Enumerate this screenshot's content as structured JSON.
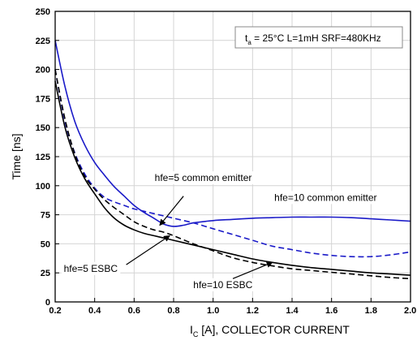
{
  "chart_data": {
    "type": "line",
    "title": "",
    "xlabel": {
      "main": "I",
      "sub": "C",
      "rest": " [A], COLLECTOR CURRENT"
    },
    "ylabel": "Time [ns]",
    "xlim": [
      0.2,
      2.0
    ],
    "ylim": [
      0,
      250
    ],
    "x_ticks": [
      0.2,
      0.4,
      0.6,
      0.8,
      1.0,
      1.2,
      1.4,
      1.6,
      1.8,
      2.0
    ],
    "x_tick_labels": [
      "0.2",
      "0.4",
      "0.6",
      "0.8",
      "1.0",
      "1.2",
      "1.4",
      "1.6",
      "1.8",
      "2.0"
    ],
    "y_ticks": [
      0,
      25,
      50,
      75,
      100,
      125,
      150,
      175,
      200,
      225,
      250
    ],
    "y_tick_labels": [
      "0",
      "25",
      "50",
      "75",
      "100",
      "125",
      "150",
      "175",
      "200",
      "225",
      "250"
    ],
    "grid": true,
    "condition_box": {
      "t": "t",
      "sub": "a",
      "rest": " = 25°C L=1mH SRF=480KHz"
    },
    "series": [
      {
        "key": "blue_solid",
        "color": "#1a1ac8",
        "dash": "solid",
        "x": [
          0.2,
          0.25,
          0.3,
          0.35,
          0.4,
          0.45,
          0.5,
          0.55,
          0.6,
          0.65,
          0.7,
          0.75,
          0.8,
          0.85,
          0.9,
          1.0,
          1.1,
          1.2,
          1.3,
          1.4,
          1.5,
          1.6,
          1.7,
          1.8,
          1.9,
          2.0
        ],
        "y": [
          225,
          185,
          155,
          135,
          120,
          109,
          99,
          91,
          83,
          77,
          72,
          67,
          65,
          66,
          68,
          70,
          71,
          72,
          72.5,
          73,
          73,
          73,
          72.5,
          71.5,
          70.5,
          69.5
        ]
      },
      {
        "key": "blue_dashed",
        "color": "#1a1ac8",
        "dash": "dashed",
        "x": [
          0.2,
          0.25,
          0.3,
          0.35,
          0.4,
          0.45,
          0.5,
          0.55,
          0.6,
          0.65,
          0.7,
          0.75,
          0.8,
          0.9,
          1.0,
          1.1,
          1.2,
          1.3,
          1.4,
          1.5,
          1.6,
          1.7,
          1.8,
          1.9,
          2.0
        ],
        "y": [
          200,
          155,
          128,
          110,
          98,
          90,
          86,
          83,
          80,
          78,
          76,
          74,
          72,
          68,
          63,
          58,
          53,
          48,
          45,
          42,
          40,
          39,
          39,
          40.5,
          43
        ]
      },
      {
        "key": "black_solid",
        "color": "#000000",
        "dash": "solid",
        "x": [
          0.2,
          0.25,
          0.3,
          0.35,
          0.4,
          0.45,
          0.5,
          0.55,
          0.6,
          0.65,
          0.7,
          0.75,
          0.8,
          0.9,
          1.0,
          1.1,
          1.2,
          1.3,
          1.4,
          1.5,
          1.6,
          1.7,
          1.8,
          1.9,
          2.0
        ],
        "y": [
          190,
          150,
          124,
          106,
          93,
          81,
          72,
          66,
          62,
          59,
          57,
          55,
          53,
          49,
          45,
          41,
          37,
          34,
          31.5,
          29.5,
          28,
          26.5,
          25,
          24,
          23
        ]
      },
      {
        "key": "black_dashed",
        "color": "#000000",
        "dash": "dashed",
        "x": [
          0.2,
          0.25,
          0.3,
          0.35,
          0.4,
          0.45,
          0.5,
          0.55,
          0.6,
          0.65,
          0.7,
          0.75,
          0.8,
          0.9,
          1.0,
          1.1,
          1.2,
          1.3,
          1.4,
          1.5,
          1.6,
          1.7,
          1.8,
          1.9,
          2.0
        ],
        "y": [
          200,
          157,
          127,
          108,
          97,
          88,
          81,
          75,
          69,
          65,
          62,
          60,
          57,
          50,
          44,
          38,
          34,
          31,
          28.5,
          27,
          25.5,
          24,
          22.5,
          21,
          20
        ]
      }
    ],
    "annotations": [
      {
        "text": "hfe=5 common emitter",
        "tx": 0.95,
        "ty": 104,
        "ax": 0.85,
        "ay": 91,
        "hx": 0.73,
        "hy": 66
      },
      {
        "text": "hfe=10 common emitter",
        "tx": 1.57,
        "ty": 87,
        "ax": 0,
        "ay": 0,
        "hx": 0,
        "hy": 0
      },
      {
        "text": "hfe=5 ESBC",
        "tx": 0.38,
        "ty": 26,
        "ax": 0.56,
        "ay": 32,
        "hx": 0.78,
        "hy": 57
      },
      {
        "text": "hfe=10 ESBC",
        "tx": 1.05,
        "ty": 12,
        "ax": 1.1,
        "ay": 20,
        "hx": 1.3,
        "hy": 34
      }
    ]
  }
}
